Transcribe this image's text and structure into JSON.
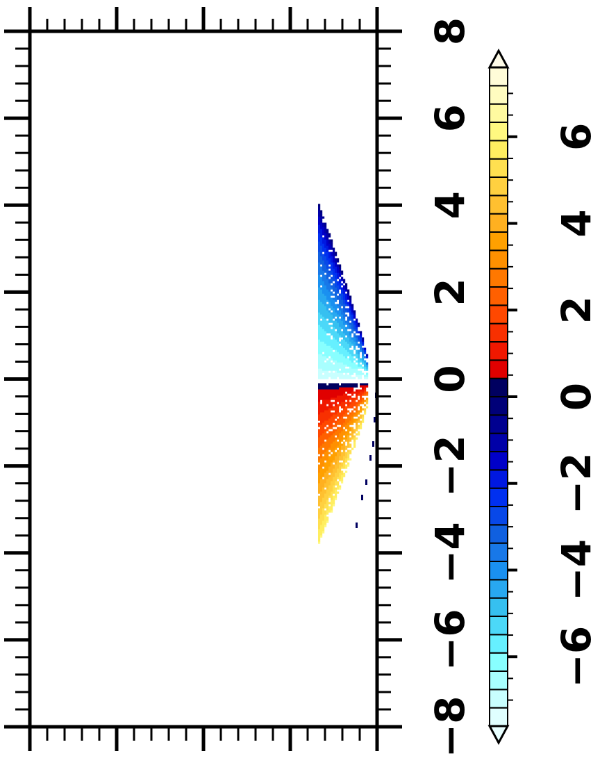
{
  "chart_data": {
    "type": "heatmap",
    "orientation": "rotated-90-ccw",
    "plot": {
      "axis_range": [
        -8,
        8
      ],
      "tick_labels": [
        "−8",
        "−6",
        "−4",
        "−2",
        "0",
        "2",
        "4",
        "6",
        "8"
      ],
      "tick_values": [
        -8,
        -6,
        -4,
        -2,
        0,
        2,
        4,
        6,
        8
      ],
      "grid": false
    },
    "colorbar": {
      "range": [
        -7.6,
        7.6
      ],
      "tick_labels": [
        "−6",
        "−4",
        "−2",
        "0",
        "2",
        "4",
        "6"
      ],
      "tick_values": [
        -6,
        -4,
        -2,
        0,
        2,
        4,
        6
      ],
      "extend": "both",
      "colors": [
        "#e0ffff",
        "#c8ffff",
        "#a8ffff",
        "#88ffff",
        "#66f0ff",
        "#4cd8f8",
        "#36c0f0",
        "#28a8f0",
        "#1a90f0",
        "#1878e8",
        "#1060e0",
        "#0848e8",
        "#0030f0",
        "#0018e0",
        "#0000c8",
        "#0000a8",
        "#000090",
        "#000078",
        "#000060",
        "#e00000",
        "#f01800",
        "#f83000",
        "#ff4800",
        "#ff6000",
        "#ff7800",
        "#ff9000",
        "#ffa000",
        "#ffb020",
        "#ffc030",
        "#ffd040",
        "#ffe050",
        "#ffee60",
        "#fff880",
        "#fffaa0",
        "#fffcc0",
        "#fffcd8"
      ],
      "under_color": "#e8ffff",
      "over_color": "#fffce8"
    },
    "data_features": [
      {
        "name": "positive-lobe",
        "sign": "positive",
        "value_range": [
          0,
          6
        ],
        "along_axis": [
          -3.5,
          0
        ]
      },
      {
        "name": "negative-lobe",
        "sign": "negative",
        "value_range": [
          -7,
          0
        ],
        "along_axis": [
          0,
          3
        ]
      },
      {
        "name": "scattered-points",
        "sign": "negative",
        "value_range": [
          -7.6,
          -6.5
        ],
        "along_axis": [
          -3.5,
          0
        ]
      }
    ]
  }
}
